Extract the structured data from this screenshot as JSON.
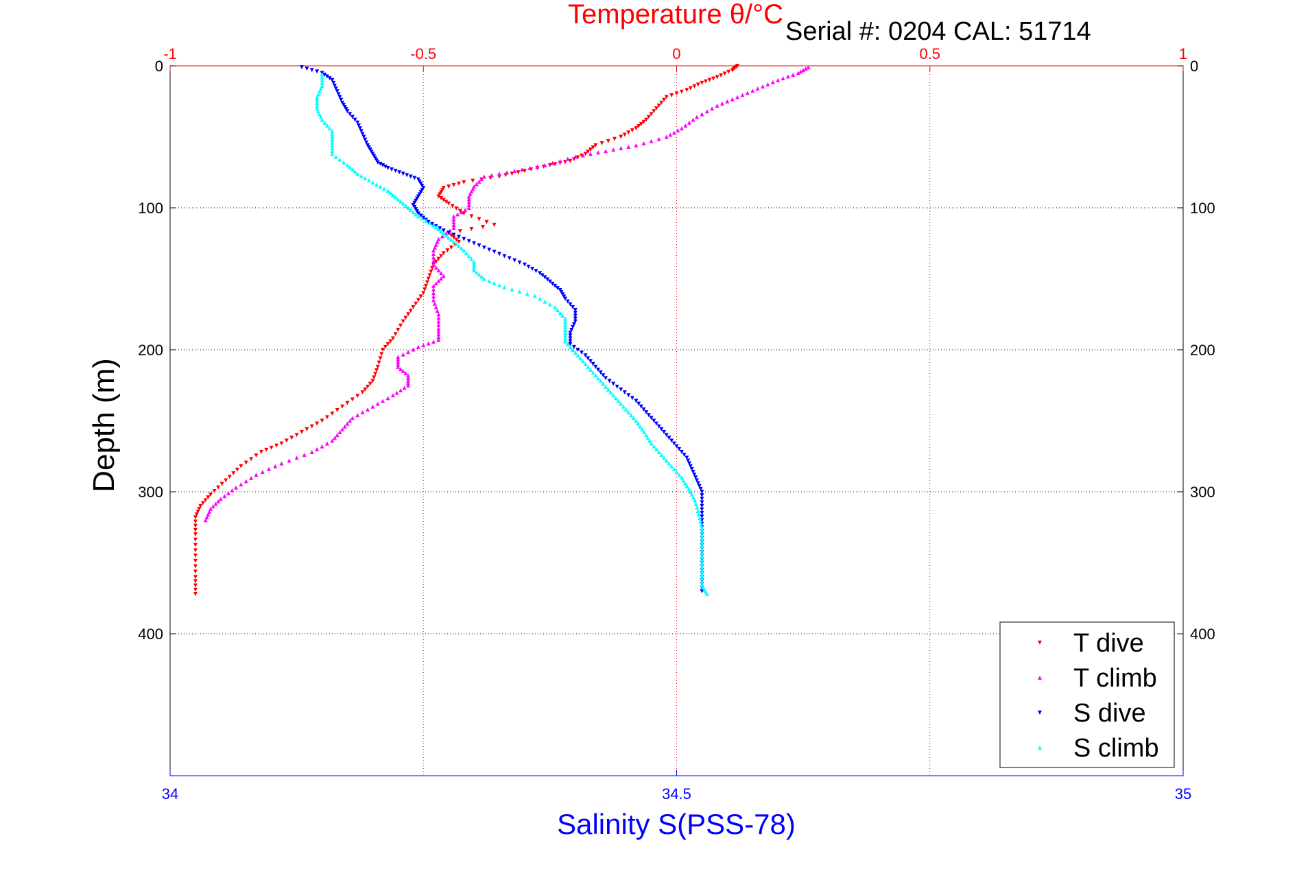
{
  "chart_data": {
    "type": "scatter",
    "top_axis_title": "Temperature θ/°C",
    "serial_text": "Serial #: 0204  CAL: 51714",
    "bottom_axis_title": "Salinity S(PSS-78)",
    "ylabel": "Depth (m)",
    "temperature_axis": {
      "range": [
        -1,
        1
      ],
      "ticks": [
        "-1",
        "-0.5",
        "0",
        "0.5",
        "1"
      ],
      "color": "#ff0000"
    },
    "salinity_axis": {
      "range": [
        34,
        35
      ],
      "ticks": [
        "34",
        "34.5",
        "35"
      ],
      "color": "#0000ff"
    },
    "depth_axis": {
      "range": [
        0,
        500
      ],
      "reversed": true,
      "ticks": [
        "0",
        "100",
        "200",
        "300",
        "400"
      ]
    },
    "grid": true,
    "legend": {
      "placement": "bottom-right"
    },
    "series": [
      {
        "name": "T dive",
        "axis": "temperature",
        "color": "#ff0000",
        "points": [
          [
            0.12,
            0
          ],
          [
            0.11,
            3
          ],
          [
            0.08,
            8
          ],
          [
            0.05,
            12
          ],
          [
            0.02,
            17
          ],
          [
            -0.02,
            22
          ],
          [
            -0.04,
            30
          ],
          [
            -0.06,
            38
          ],
          [
            -0.08,
            44
          ],
          [
            -0.11,
            50
          ],
          [
            -0.16,
            56
          ],
          [
            -0.18,
            62
          ],
          [
            -0.21,
            67
          ],
          [
            -0.25,
            70
          ],
          [
            -0.3,
            74
          ],
          [
            -0.35,
            78
          ],
          [
            -0.42,
            82
          ],
          [
            -0.46,
            86
          ],
          [
            -0.47,
            92
          ],
          [
            -0.45,
            97
          ],
          [
            -0.42,
            104
          ],
          [
            -0.36,
            112
          ],
          [
            -0.45,
            118
          ],
          [
            -0.43,
            124
          ],
          [
            -0.46,
            132
          ],
          [
            -0.48,
            140
          ],
          [
            -0.49,
            150
          ],
          [
            -0.5,
            160
          ],
          [
            -0.52,
            170
          ],
          [
            -0.54,
            180
          ],
          [
            -0.56,
            192
          ],
          [
            -0.58,
            200
          ],
          [
            -0.59,
            212
          ],
          [
            -0.6,
            222
          ],
          [
            -0.62,
            230
          ],
          [
            -0.66,
            240
          ],
          [
            -0.7,
            250
          ],
          [
            -0.74,
            258
          ],
          [
            -0.78,
            266
          ],
          [
            -0.82,
            272
          ],
          [
            -0.86,
            282
          ],
          [
            -0.89,
            292
          ],
          [
            -0.92,
            302
          ],
          [
            -0.94,
            310
          ],
          [
            -0.95,
            318
          ],
          [
            -0.95,
            330
          ],
          [
            -0.95,
            345
          ],
          [
            -0.95,
            360
          ],
          [
            -0.95,
            372
          ]
        ]
      },
      {
        "name": "T climb",
        "axis": "temperature",
        "color": "#ff00ff",
        "points": [
          [
            -0.93,
            320
          ],
          [
            -0.92,
            312
          ],
          [
            -0.9,
            305
          ],
          [
            -0.87,
            297
          ],
          [
            -0.83,
            288
          ],
          [
            -0.78,
            280
          ],
          [
            -0.72,
            272
          ],
          [
            -0.68,
            264
          ],
          [
            -0.66,
            256
          ],
          [
            -0.64,
            248
          ],
          [
            -0.6,
            240
          ],
          [
            -0.56,
            232
          ],
          [
            -0.53,
            225
          ],
          [
            -0.53,
            218
          ],
          [
            -0.55,
            212
          ],
          [
            -0.55,
            205
          ],
          [
            -0.51,
            198
          ],
          [
            -0.47,
            193
          ],
          [
            -0.47,
            185
          ],
          [
            -0.47,
            175
          ],
          [
            -0.48,
            165
          ],
          [
            -0.48,
            155
          ],
          [
            -0.46,
            148
          ],
          [
            -0.48,
            140
          ],
          [
            -0.48,
            130
          ],
          [
            -0.47,
            122
          ],
          [
            -0.44,
            114
          ],
          [
            -0.44,
            106
          ],
          [
            -0.41,
            100
          ],
          [
            -0.41,
            92
          ],
          [
            -0.4,
            85
          ],
          [
            -0.38,
            78
          ],
          [
            -0.32,
            74
          ],
          [
            -0.26,
            70
          ],
          [
            -0.2,
            64
          ],
          [
            -0.14,
            60
          ],
          [
            -0.08,
            56
          ],
          [
            -0.02,
            50
          ],
          [
            0.01,
            44
          ],
          [
            0.04,
            36
          ],
          [
            0.08,
            28
          ],
          [
            0.12,
            22
          ],
          [
            0.16,
            16
          ],
          [
            0.2,
            10
          ],
          [
            0.24,
            5
          ],
          [
            0.26,
            1
          ]
        ]
      },
      {
        "name": "S dive",
        "axis": "salinity",
        "color": "#0000ff",
        "points": [
          [
            34.13,
            1
          ],
          [
            34.15,
            5
          ],
          [
            34.16,
            10
          ],
          [
            34.165,
            18
          ],
          [
            34.17,
            26
          ],
          [
            34.175,
            32
          ],
          [
            34.185,
            40
          ],
          [
            34.19,
            48
          ],
          [
            34.195,
            56
          ],
          [
            34.2,
            62
          ],
          [
            34.205,
            68
          ],
          [
            34.215,
            72
          ],
          [
            34.23,
            76
          ],
          [
            34.245,
            80
          ],
          [
            34.25,
            86
          ],
          [
            34.245,
            92
          ],
          [
            34.24,
            98
          ],
          [
            34.245,
            104
          ],
          [
            34.255,
            110
          ],
          [
            34.27,
            116
          ],
          [
            34.29,
            122
          ],
          [
            34.31,
            128
          ],
          [
            34.33,
            134
          ],
          [
            34.35,
            140
          ],
          [
            34.365,
            146
          ],
          [
            34.375,
            152
          ],
          [
            34.385,
            158
          ],
          [
            34.39,
            164
          ],
          [
            34.4,
            172
          ],
          [
            34.4,
            180
          ],
          [
            34.395,
            188
          ],
          [
            34.395,
            196
          ],
          [
            34.41,
            204
          ],
          [
            34.42,
            212
          ],
          [
            34.43,
            220
          ],
          [
            34.445,
            228
          ],
          [
            34.46,
            236
          ],
          [
            34.47,
            244
          ],
          [
            34.48,
            252
          ],
          [
            34.49,
            260
          ],
          [
            34.5,
            268
          ],
          [
            34.51,
            276
          ],
          [
            34.515,
            284
          ],
          [
            34.52,
            292
          ],
          [
            34.525,
            300
          ],
          [
            34.525,
            310
          ],
          [
            34.525,
            320
          ],
          [
            34.525,
            330
          ],
          [
            34.525,
            340
          ],
          [
            34.525,
            350
          ],
          [
            34.525,
            360
          ],
          [
            34.525,
            370
          ]
        ]
      },
      {
        "name": "S climb",
        "axis": "salinity",
        "color": "#00ffff",
        "points": [
          [
            34.53,
            372
          ],
          [
            34.525,
            366
          ],
          [
            34.525,
            356
          ],
          [
            34.525,
            346
          ],
          [
            34.525,
            336
          ],
          [
            34.525,
            326
          ],
          [
            34.522,
            316
          ],
          [
            34.518,
            306
          ],
          [
            34.512,
            298
          ],
          [
            34.505,
            290
          ],
          [
            34.495,
            282
          ],
          [
            34.485,
            274
          ],
          [
            34.475,
            266
          ],
          [
            34.468,
            258
          ],
          [
            34.46,
            250
          ],
          [
            34.45,
            242
          ],
          [
            34.44,
            234
          ],
          [
            34.43,
            226
          ],
          [
            34.42,
            218
          ],
          [
            34.41,
            210
          ],
          [
            34.4,
            202
          ],
          [
            34.39,
            194
          ],
          [
            34.39,
            186
          ],
          [
            34.39,
            178
          ],
          [
            34.38,
            170
          ],
          [
            34.36,
            162
          ],
          [
            34.33,
            156
          ],
          [
            34.31,
            150
          ],
          [
            34.3,
            144
          ],
          [
            34.3,
            138
          ],
          [
            34.29,
            130
          ],
          [
            34.28,
            124
          ],
          [
            34.27,
            118
          ],
          [
            34.26,
            112
          ],
          [
            34.245,
            106
          ],
          [
            34.235,
            100
          ],
          [
            34.225,
            94
          ],
          [
            34.215,
            88
          ],
          [
            34.2,
            82
          ],
          [
            34.185,
            76
          ],
          [
            34.175,
            70
          ],
          [
            34.16,
            62
          ],
          [
            34.16,
            54
          ],
          [
            34.16,
            46
          ],
          [
            34.15,
            38
          ],
          [
            34.145,
            30
          ],
          [
            34.145,
            22
          ],
          [
            34.15,
            14
          ],
          [
            34.15,
            6
          ]
        ]
      }
    ]
  }
}
